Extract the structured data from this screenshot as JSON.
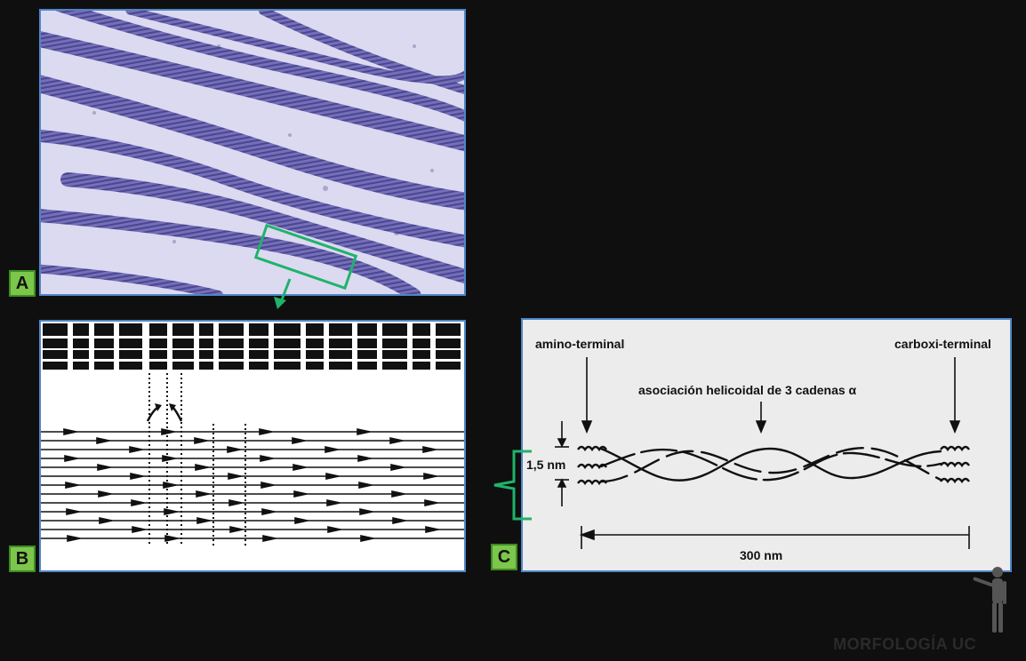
{
  "labels": {
    "a": "A",
    "b": "B",
    "c": "C"
  },
  "diagram_c": {
    "amino": "amino-terminal",
    "carboxi": "carboxi-terminal",
    "helix": "asociación helicoidal de 3 cadenas α",
    "diameter": "1,5 nm",
    "length": "300 nm"
  },
  "logo": "MORFOLOGÍA UC",
  "colors": {
    "background": "#0f0f0f",
    "panel_border": "#4f86c8",
    "label_fill": "#7cc74b",
    "highlight": "#1fb36a",
    "micro_stain": "#5a55a8"
  }
}
